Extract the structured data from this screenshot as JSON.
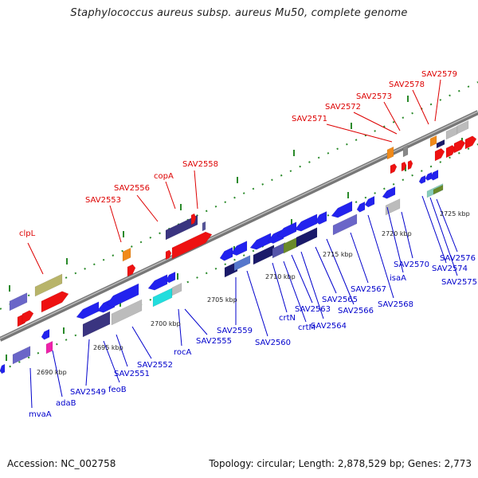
{
  "title": "Staphylococcus aureus subsp. aureus Mu50, complete genome",
  "accession": "Accession: NC_002758",
  "topology": "Topology: circular; Length: 2,878,529 bp; Genes: 2,773",
  "colors": {
    "backbone": "#888888",
    "forward_label": "#dd0000",
    "reverse_label": "#0000cc",
    "tick": "#227722"
  },
  "scale_labels": [
    "2690 kbp",
    "2695 kbp",
    "2700 kbp",
    "2705 kbp",
    "2710 kbp",
    "2715 kbp",
    "2720 kbp",
    "2725 kbp"
  ],
  "forward_genes": [
    "clpL",
    "SAV2553",
    "SAV2556",
    "copA",
    "SAV2558",
    "SAV2571",
    "SAV2572",
    "SAV2573",
    "SAV2578",
    "SAV2579"
  ],
  "reverse_genes": [
    "mvaA",
    "adaB",
    "SAV2549",
    "feoB",
    "SAV2551",
    "SAV2552",
    "rocA",
    "SAV2555",
    "SAV2559",
    "SAV2560",
    "crtN",
    "crtM",
    "SAV2563",
    "SAV2564",
    "SAV2565",
    "SAV2566",
    "SAV2567",
    "SAV2568",
    "isaA",
    "SAV2570",
    "SAV2574",
    "SAV2575",
    "SAV2576"
  ]
}
